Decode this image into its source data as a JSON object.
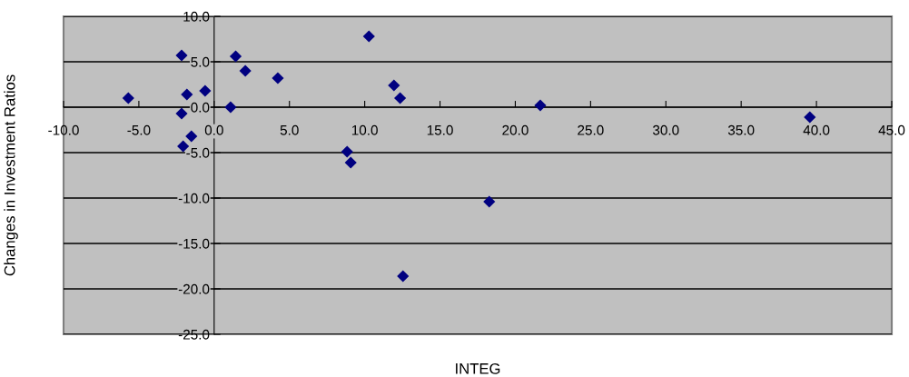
{
  "chart_data": {
    "type": "scatter",
    "xlabel": "INTEG",
    "ylabel": "Changes in Investment Ratios",
    "x": [
      -5.7,
      -2.16,
      -1.81,
      -0.6,
      -2.16,
      -2.06,
      -1.51,
      1.09,
      1.43,
      2.07,
      4.23,
      10.28,
      11.94,
      12.35,
      21.66,
      8.83,
      9.07,
      18.27,
      12.54,
      39.56
    ],
    "series": [
      {
        "color": "#000080",
        "values": [
          1.0,
          5.7,
          1.4,
          1.8,
          -0.7,
          -4.3,
          -3.2,
          0.0,
          5.6,
          4.0,
          3.2,
          7.8,
          2.4,
          1.0,
          0.2,
          -4.9,
          -6.1,
          -10.4,
          -18.6,
          -1.1
        ]
      }
    ],
    "marker": "diamond",
    "grid": "y",
    "xlim": [
      -10,
      45
    ],
    "ylim": [
      -25,
      10
    ],
    "xticks": [
      {
        "value": -10,
        "label": "-10.0"
      },
      {
        "value": -5,
        "label": "-5.0"
      },
      {
        "value": 0,
        "label": "0.0"
      },
      {
        "value": 5,
        "label": "5.0"
      },
      {
        "value": 10,
        "label": "10.0"
      },
      {
        "value": 15,
        "label": "15.0"
      },
      {
        "value": 20,
        "label": "20.0"
      },
      {
        "value": 25,
        "label": "25.0"
      },
      {
        "value": 30,
        "label": "30.0"
      },
      {
        "value": 35,
        "label": "35.0"
      },
      {
        "value": 40,
        "label": "40.0"
      },
      {
        "value": 45,
        "label": "45.0"
      }
    ],
    "yticks": [
      {
        "value": -25,
        "label": "-25.0"
      },
      {
        "value": -20,
        "label": "-20.0"
      },
      {
        "value": -15,
        "label": "-15.0"
      },
      {
        "value": -10,
        "label": "-10.0"
      },
      {
        "value": -5,
        "label": "-5.0"
      },
      {
        "value": 0,
        "label": "0.0"
      },
      {
        "value": 5,
        "label": "5.0"
      },
      {
        "value": 10,
        "label": "10.0"
      }
    ]
  }
}
